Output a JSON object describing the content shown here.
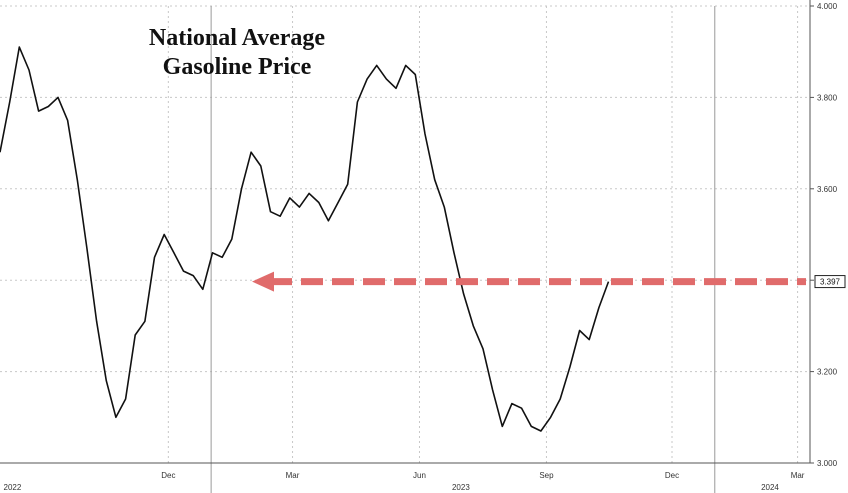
{
  "chart_data": {
    "type": "line",
    "title_lines": [
      "National Average",
      "Gasoline Price"
    ],
    "ylim": [
      3.0,
      4.0
    ],
    "yticks": [
      "3.000",
      "3.200",
      "3.400",
      "3.600",
      "3.800",
      "4.000"
    ],
    "x_month_labels": [
      "Dec",
      "Mar",
      "Jun",
      "Sep",
      "Dec",
      "Mar"
    ],
    "x_year_labels": [
      "2022",
      "2023",
      "2024"
    ],
    "last_value_label": "3.397",
    "reference_level": 3.397,
    "grid": true,
    "series": [
      {
        "x": [
          "2022-08-01",
          "2022-08-08",
          "2022-08-15",
          "2022-08-22",
          "2022-08-29",
          "2022-09-05",
          "2022-09-12",
          "2022-09-19",
          "2022-09-26",
          "2022-10-03",
          "2022-10-10",
          "2022-10-17",
          "2022-10-24",
          "2022-10-31",
          "2022-11-07",
          "2022-11-14",
          "2022-11-21",
          "2022-11-28",
          "2022-12-05",
          "2022-12-12",
          "2022-12-19",
          "2022-12-26",
          "2023-01-02",
          "2023-01-09",
          "2023-01-16",
          "2023-01-23",
          "2023-01-30",
          "2023-02-06",
          "2023-02-13",
          "2023-02-20",
          "2023-02-27",
          "2023-03-06",
          "2023-03-13",
          "2023-03-20",
          "2023-03-27",
          "2023-04-03",
          "2023-04-10",
          "2023-04-17",
          "2023-04-24",
          "2023-05-01",
          "2023-05-08",
          "2023-05-15",
          "2023-05-22",
          "2023-05-29",
          "2023-06-05",
          "2023-06-12",
          "2023-06-19",
          "2023-06-26",
          "2023-07-03",
          "2023-07-10",
          "2023-07-17",
          "2023-07-24",
          "2023-07-31",
          "2023-08-07",
          "2023-08-14",
          "2023-08-21",
          "2023-08-28",
          "2023-09-04",
          "2023-09-11",
          "2023-09-18",
          "2023-09-25",
          "2023-10-02",
          "2023-10-09",
          "2023-10-16",
          "2023-10-23",
          "2023-10-30",
          "2023-11-06",
          "2023-11-13",
          "2023-11-20",
          "2023-11-27",
          "2023-12-04",
          "2023-12-11",
          "2023-12-18",
          "2023-12-25",
          "2024-01-01",
          "2024-01-08",
          "2024-01-15",
          "2024-01-22",
          "2024-01-29",
          "2024-02-05",
          "2024-02-12",
          "2024-02-19",
          "2024-02-26",
          "2024-03-04"
        ],
        "values": [
          3.68,
          3.79,
          3.91,
          3.86,
          3.77,
          3.78,
          3.8,
          3.75,
          3.62,
          3.47,
          3.31,
          3.18,
          3.1,
          3.14,
          3.28,
          3.31,
          3.45,
          3.5,
          3.46,
          3.42,
          3.41,
          3.38,
          3.46,
          3.45,
          3.49,
          3.6,
          3.68,
          3.65,
          3.55,
          3.54,
          3.58,
          3.56,
          3.59,
          3.57,
          3.53,
          3.57,
          3.61,
          3.79,
          3.84,
          3.87,
          3.84,
          3.82,
          3.87,
          3.85,
          3.72,
          3.62,
          3.56,
          3.46,
          3.37,
          3.3,
          3.25,
          3.16,
          3.08,
          3.13,
          3.12,
          3.08,
          3.07,
          3.1,
          3.14,
          3.21,
          3.29,
          3.27,
          3.34,
          3.397,
          null,
          null,
          null,
          null,
          null,
          null,
          null,
          null,
          null,
          null,
          null,
          null,
          null,
          null,
          null,
          null,
          null,
          null,
          null,
          null
        ]
      }
    ]
  }
}
